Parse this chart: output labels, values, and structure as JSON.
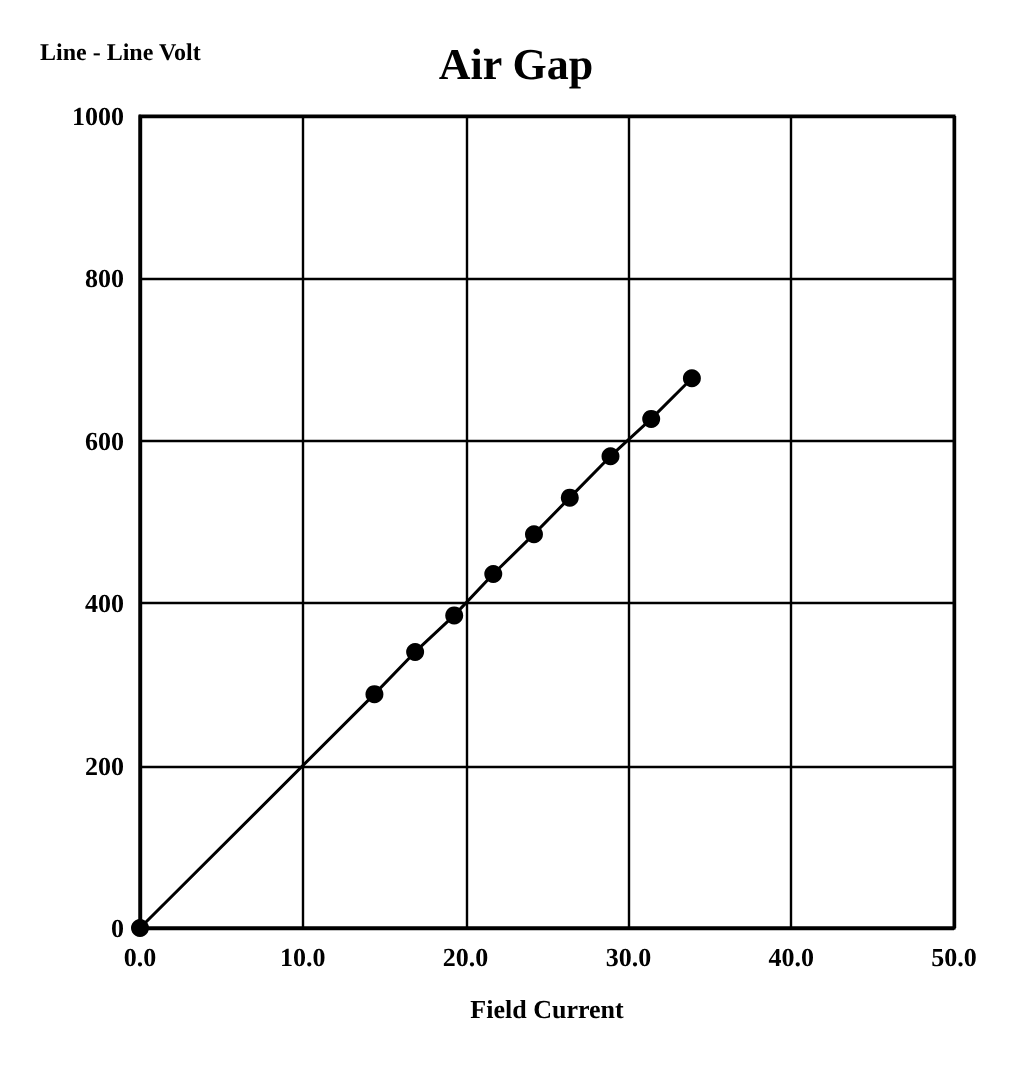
{
  "chart_data": {
    "type": "line",
    "title": "Air Gap",
    "xlabel": "Field Current",
    "ylabel": "Line - Line Volt",
    "x": [
      0,
      14.4,
      16.9,
      19.3,
      21.7,
      24.2,
      26.4,
      28.9,
      31.4,
      33.9
    ],
    "series": [
      {
        "color": "#000000",
        "values": [
          0,
          288,
          340,
          385,
          436,
          485,
          530,
          581,
          627,
          677
        ]
      }
    ],
    "xlim": [
      0,
      50
    ],
    "xticks": [
      {
        "value": 0,
        "label": "0.0"
      },
      {
        "value": 10,
        "label": "10.0"
      },
      {
        "value": 20,
        "label": "20.0"
      },
      {
        "value": 30,
        "label": "30.0"
      },
      {
        "value": 40,
        "label": "40.0"
      },
      {
        "value": 50,
        "label": "50.0"
      }
    ],
    "ylim": [
      0,
      1000
    ],
    "yticks": [
      0,
      200,
      400,
      600,
      800,
      1000
    ],
    "grid": true,
    "marker": "circle",
    "line_style": "solid"
  }
}
